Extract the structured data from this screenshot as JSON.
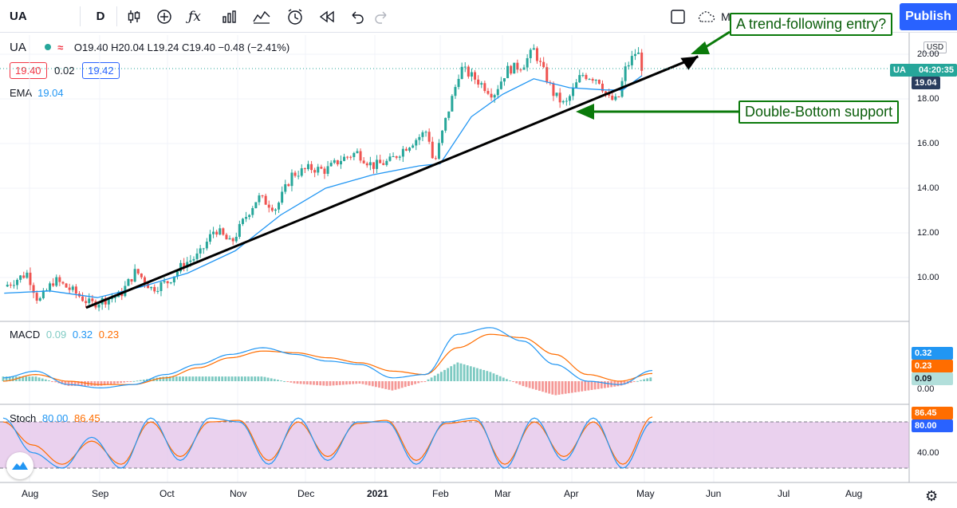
{
  "toolbar": {
    "symbol": "UA",
    "interval": "D",
    "publish_label": "Publish",
    "m_label": "M",
    "colors": {
      "publish_bg": "#2962ff"
    }
  },
  "legend": {
    "symbol": "UA",
    "ohlc": "O19.40 H20.04 L19.24 C19.40 −0.48 (−2.41%)",
    "bid": "19.40",
    "spread": "0.02",
    "ask": "19.42",
    "ema_label": "EMA",
    "ema_value": "19.04"
  },
  "price_axis": {
    "currency": "USD",
    "ticks": [
      "20.00",
      "18.00",
      "16.00",
      "14.00",
      "12.00",
      "10.00"
    ],
    "last_symbol": "UA",
    "last_time": "04:20:35",
    "ema_tag": "19.04"
  },
  "macd": {
    "label": "MACD",
    "v1": "0.09",
    "v2": "0.32",
    "v3": "0.23",
    "tags": [
      "0.32",
      "0.23",
      "0.09"
    ],
    "zero_tick": "0.00"
  },
  "stoch": {
    "label": "Stoch",
    "k": "80.00",
    "d": "86.45",
    "tags": [
      "86.45",
      "80.00"
    ],
    "tick": "40.00"
  },
  "time_axis": [
    "Aug",
    "Sep",
    "Oct",
    "Nov",
    "Dec",
    "2021",
    "Feb",
    "Mar",
    "Apr",
    "May",
    "Jun",
    "Jul",
    "Aug"
  ],
  "annotations": {
    "callout_top": "A trend-following entry?",
    "callout_bottom": "Double-Bottom support"
  },
  "chart_data": {
    "type": "candlestick",
    "ylim": [
      8.5,
      20.7
    ],
    "close_path": [
      [
        "Jul 20",
        9.6
      ],
      [
        "Jul 31",
        10.2
      ],
      [
        "Aug 5",
        8.9
      ],
      [
        "Aug 12",
        9.9
      ],
      [
        "Aug 20",
        9.4
      ],
      [
        "Aug 28",
        8.8
      ],
      [
        "Sep 3",
        9.0
      ],
      [
        "Sep 10",
        9.2
      ],
      [
        "Sep 17",
        10.3
      ],
      [
        "Sep 24",
        9.5
      ],
      [
        "Oct 1",
        9.8
      ],
      [
        "Oct 8",
        10.6
      ],
      [
        "Oct 15",
        11.0
      ],
      [
        "Oct 22",
        12.2
      ],
      [
        "Oct 29",
        11.5
      ],
      [
        "Nov 5",
        12.8
      ],
      [
        "Nov 10",
        13.6
      ],
      [
        "Nov 18",
        13.1
      ],
      [
        "Nov 25",
        14.6
      ],
      [
        "Dec 3",
        14.9
      ],
      [
        "Dec 10",
        14.8
      ],
      [
        "Dec 17",
        15.3
      ],
      [
        "Dec 24",
        15.6
      ],
      [
        "Dec 31",
        15.0
      ],
      [
        "Jan 8",
        15.2
      ],
      [
        "Jan 15",
        15.8
      ],
      [
        "Jan 22",
        16.3
      ],
      [
        "Jan 26",
        16.6
      ],
      [
        "Jan 29",
        15.0
      ],
      [
        "Feb 3",
        16.9
      ],
      [
        "Feb 8",
        18.6
      ],
      [
        "Feb 10",
        19.4
      ],
      [
        "Feb 18",
        18.8
      ],
      [
        "Feb 25",
        18.2
      ],
      [
        "Mar 3",
        19.3
      ],
      [
        "Mar 10",
        19.5
      ],
      [
        "Mar 15",
        20.2
      ],
      [
        "Mar 19",
        19.3
      ],
      [
        "Mar 24",
        18.2
      ],
      [
        "Mar 29",
        17.7
      ],
      [
        "Apr 5",
        19.1
      ],
      [
        "Apr 12",
        18.9
      ],
      [
        "Apr 16",
        18.0
      ],
      [
        "Apr 20",
        17.9
      ],
      [
        "Apr 23",
        19.3
      ],
      [
        "Apr 28",
        20.2
      ],
      [
        "Apr 30",
        19.4
      ]
    ],
    "ema_path": [
      [
        "Jul 20",
        9.3
      ],
      [
        "Aug 10",
        9.4
      ],
      [
        "Aug 31",
        9.1
      ],
      [
        "Sep 20",
        9.6
      ],
      [
        "Oct 10",
        10.2
      ],
      [
        "Oct 31",
        11.2
      ],
      [
        "Nov 20",
        12.8
      ],
      [
        "Dec 10",
        14.0
      ],
      [
        "Dec 31",
        14.6
      ],
      [
        "Jan 22",
        15.0
      ],
      [
        "Feb 1",
        15.1
      ],
      [
        "Feb 15",
        17.2
      ],
      [
        "Mar 1",
        18.2
      ],
      [
        "Mar 15",
        18.9
      ],
      [
        "Mar 31",
        18.5
      ],
      [
        "Apr 15",
        18.4
      ],
      [
        "Apr 22",
        18.4
      ],
      [
        "Apr 30",
        19.04
      ]
    ],
    "trendline": {
      "from": [
        "Aug 26",
        8.65
      ],
      "to": [
        "May 25",
        19.9
      ]
    },
    "support_line": {
      "y": 17.5
    },
    "macd_series": [
      {
        "name": "MACD",
        "values": [
          0.1,
          0.3,
          -0.1,
          -0.2,
          -0.1,
          0.2,
          0.5,
          0.8,
          1.0,
          0.8,
          0.6,
          0.5,
          0.1,
          0.2,
          1.4,
          1.6,
          1.2,
          0.5,
          0.0,
          -0.1,
          0.32
        ]
      },
      {
        "name": "Signal",
        "values": [
          0.0,
          0.2,
          0.0,
          -0.1,
          -0.1,
          0.1,
          0.4,
          0.7,
          0.9,
          0.85,
          0.7,
          0.55,
          0.3,
          0.2,
          1.0,
          1.4,
          1.3,
          0.8,
          0.2,
          0.0,
          0.23
        ]
      }
    ],
    "stoch_series": [
      {
        "name": "K",
        "values": [
          85,
          40,
          20,
          60,
          20,
          85,
          30,
          85,
          80,
          25,
          85,
          30,
          80,
          80,
          25,
          80,
          85,
          20,
          85,
          30,
          85,
          20,
          80
        ]
      },
      {
        "name": "D",
        "values": [
          80,
          50,
          25,
          55,
          25,
          80,
          35,
          80,
          82,
          30,
          80,
          35,
          78,
          82,
          30,
          78,
          82,
          25,
          80,
          35,
          80,
          25,
          86.45
        ]
      }
    ]
  }
}
